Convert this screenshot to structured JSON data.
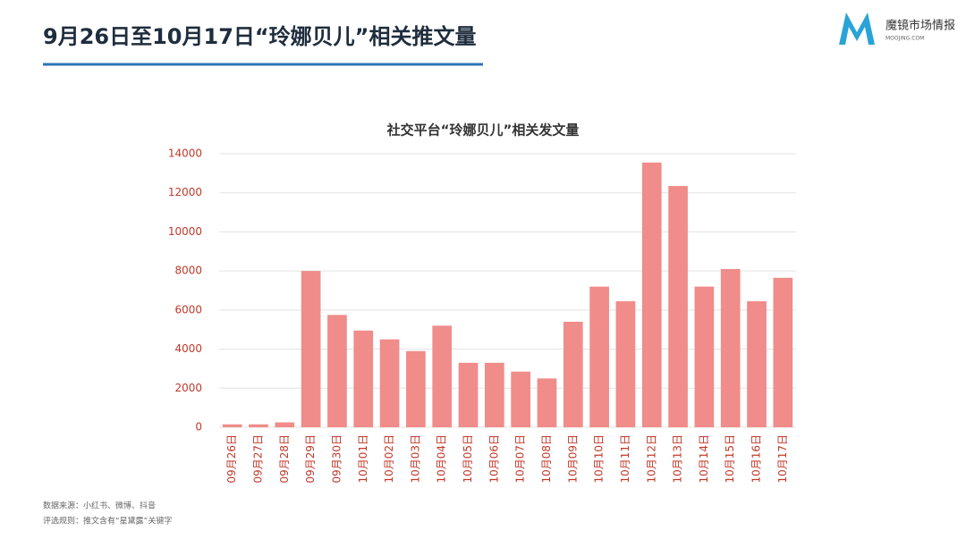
{
  "header": {
    "title": "9月26日至10月17日“玲娜贝儿”相关推文量",
    "logo_name": "魔镜市场情报",
    "logo_url": "MOOJING.COM"
  },
  "chart_data": {
    "type": "bar",
    "title": "社交平台“玲娜贝儿”相关发文量",
    "categories": [
      "09月26日",
      "09月27日",
      "09月28日",
      "09月29日",
      "09月30日",
      "10月01日",
      "10月02日",
      "10月03日",
      "10月04日",
      "10月05日",
      "10月06日",
      "10月07日",
      "10月08日",
      "10月09日",
      "10月10日",
      "10月11日",
      "10月12日",
      "10月13日",
      "10月14日",
      "10月15日",
      "10月16日",
      "10月17日"
    ],
    "values": [
      150,
      150,
      250,
      8000,
      5750,
      4950,
      4500,
      3900,
      5200,
      3300,
      3300,
      2850,
      2500,
      5400,
      7200,
      6450,
      13550,
      12350,
      7200,
      8100,
      6450,
      7650
    ],
    "color": "#f08c8a",
    "ylim": [
      0,
      14000
    ],
    "yticks": [
      0,
      2000,
      4000,
      6000,
      8000,
      10000,
      12000,
      14000
    ],
    "grid": true
  },
  "footnotes": [
    "数据来源：小红书、微博、抖音",
    "评选规则：推文含有“星黛露”关键字"
  ]
}
